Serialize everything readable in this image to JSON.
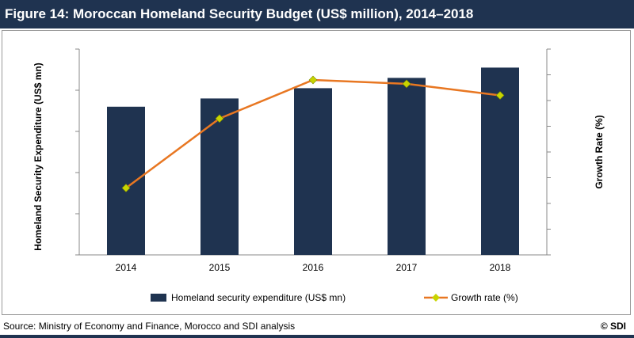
{
  "title": "Figure 14: Moroccan Homeland Security Budget (US$ million), 2014–2018",
  "footer": {
    "source": "Source: Ministry of Economy and Finance, Morocco and SDI analysis",
    "copyright": "© SDI"
  },
  "colors": {
    "title_bar": "#1f3350",
    "bar": "#1f3350",
    "line": "#e87722",
    "marker": "#c8d400"
  },
  "chart_data": {
    "type": "bar",
    "categories": [
      "2014",
      "2015",
      "2016",
      "2017",
      "2018"
    ],
    "ylabel": "Homeland Security Expenditure (US$  mn)",
    "y2label": "Growth Rate (%)",
    "ylim": [
      0,
      5
    ],
    "y2lim": [
      0,
      8
    ],
    "grid": false,
    "legend_position": "bottom",
    "series": [
      {
        "name": "Homeland security expenditure (US$ mn)",
        "type": "bar",
        "axis": "left",
        "values": [
          3.6,
          3.8,
          4.05,
          4.3,
          4.55
        ]
      },
      {
        "name": "Growth rate (%)",
        "type": "line",
        "axis": "right",
        "values": [
          2.6,
          5.3,
          6.8,
          6.65,
          6.2
        ]
      }
    ]
  }
}
